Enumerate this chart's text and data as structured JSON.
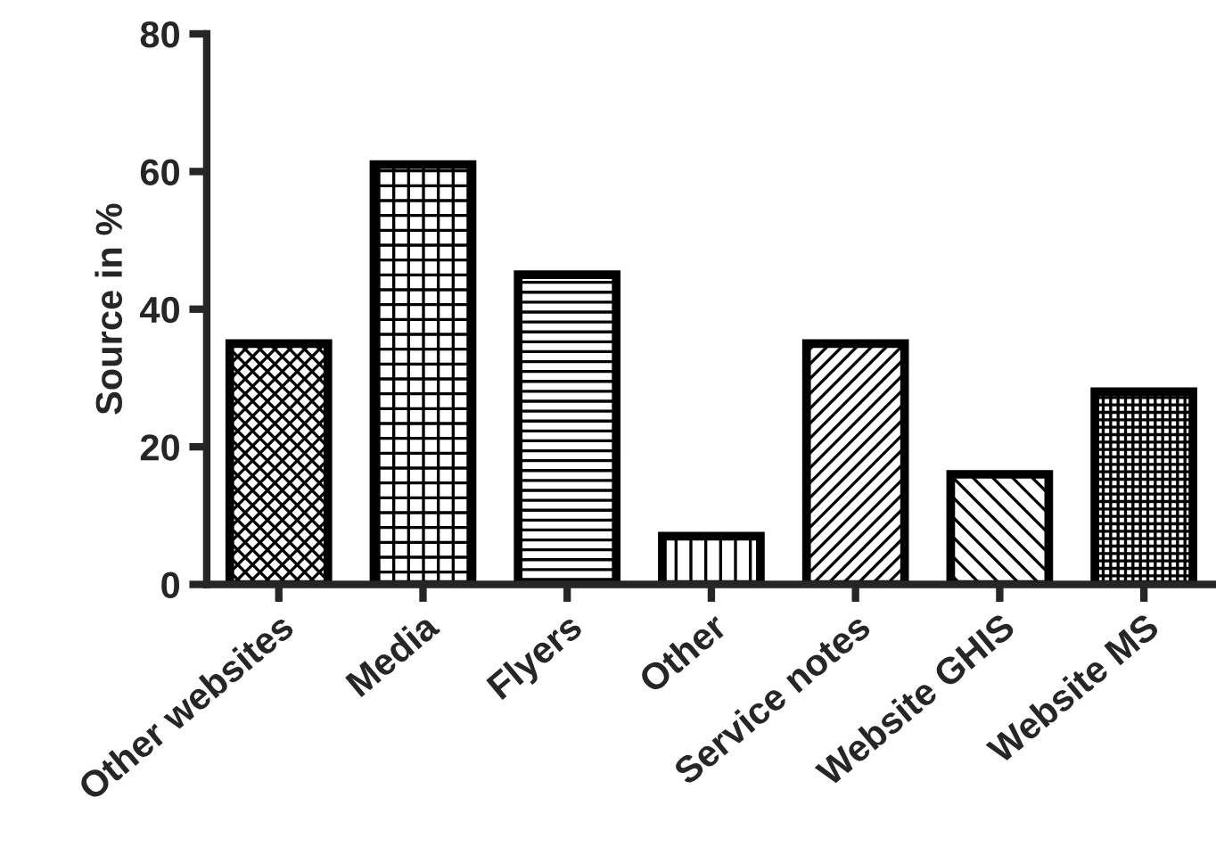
{
  "chart_data": {
    "type": "bar",
    "ylabel": "Source in %",
    "categories": [
      "Other websites",
      "Media",
      "Flyers",
      "Other",
      "Service notes",
      "Website GHIS",
      "Website MS"
    ],
    "values": [
      35,
      61,
      45,
      7,
      35,
      16,
      28
    ],
    "ylim": [
      0,
      80
    ],
    "yticks": [
      0,
      20,
      40,
      60,
      80
    ],
    "grid": false,
    "legend": false
  }
}
